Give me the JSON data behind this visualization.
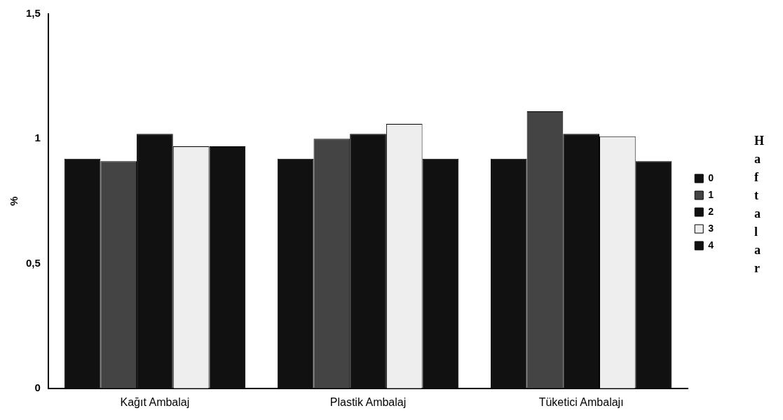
{
  "chart_data": {
    "type": "bar",
    "ylabel": "%",
    "legend_title": "Haftalar",
    "legend": "right",
    "grid": false,
    "categories": [
      "Kağıt Ambalaj",
      "Plastik Ambalaj",
      "Tüketici Ambalajı"
    ],
    "ylim": [
      0,
      1.5
    ],
    "yticks": [
      0,
      {
        "value": 0.5,
        "label": "0,5"
      },
      1,
      {
        "value": 1.5,
        "label": "1,5"
      }
    ],
    "series": [
      {
        "name": "0",
        "color": "#111111",
        "values": [
          0.92,
          0.92,
          0.92
        ]
      },
      {
        "name": "1",
        "color": "#444444",
        "values": [
          0.91,
          1.0,
          1.11
        ]
      },
      {
        "name": "2",
        "color": "#111111",
        "values": [
          1.02,
          1.02,
          1.02
        ]
      },
      {
        "name": "3",
        "color": "#eeeeee",
        "values": [
          0.97,
          1.06,
          1.01
        ]
      },
      {
        "name": "4",
        "color": "#111111",
        "values": [
          0.97,
          0.92,
          0.91
        ]
      }
    ]
  }
}
